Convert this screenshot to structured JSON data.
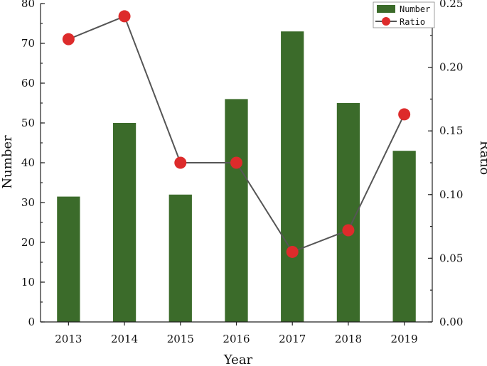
{
  "chart_data": {
    "type": "bar",
    "categories": [
      "2013",
      "2014",
      "2015",
      "2016",
      "2017",
      "2018",
      "2019"
    ],
    "series": [
      {
        "name": "Number",
        "type": "bar",
        "axis": "left",
        "values": [
          31.5,
          50,
          32,
          56,
          73,
          55,
          43
        ]
      },
      {
        "name": "Ratio",
        "type": "line",
        "axis": "right",
        "values": [
          0.222,
          0.24,
          0.125,
          0.125,
          0.055,
          0.072,
          0.163
        ]
      }
    ],
    "xlabel": "Year",
    "ylabel": "Number",
    "y2label": "Ratio",
    "ylim": [
      0,
      80
    ],
    "y2lim": [
      0,
      0.25
    ],
    "yticks": [
      "0",
      "10",
      "20",
      "30",
      "40",
      "50",
      "60",
      "70",
      "80"
    ],
    "y2ticks": [
      "0.00",
      "0.05",
      "0.10",
      "0.15",
      "0.20",
      "0.25"
    ],
    "legend": "top-right",
    "grid": false,
    "colors": {
      "bar": "#3b6b2a",
      "line": "#555555",
      "marker": "#dd2b2b",
      "axis": "#222222"
    }
  }
}
